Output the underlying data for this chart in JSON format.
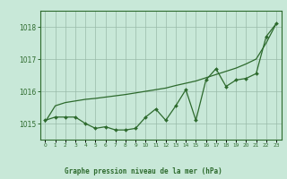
{
  "x": [
    0,
    1,
    2,
    3,
    4,
    5,
    6,
    7,
    8,
    9,
    10,
    11,
    12,
    13,
    14,
    15,
    16,
    17,
    18,
    19,
    20,
    21,
    22,
    23
  ],
  "y_line": [
    1015.1,
    1015.2,
    1015.2,
    1015.2,
    1015.0,
    1014.85,
    1014.9,
    1014.8,
    1014.8,
    1014.85,
    1015.2,
    1015.45,
    1015.1,
    1015.55,
    1016.05,
    1015.1,
    1016.35,
    1016.7,
    1016.15,
    1016.35,
    1016.4,
    1016.55,
    1017.7,
    1018.1
  ],
  "y_trend": [
    1015.05,
    1015.55,
    1015.65,
    1015.7,
    1015.75,
    1015.78,
    1015.82,
    1015.86,
    1015.9,
    1015.95,
    1016.0,
    1016.05,
    1016.1,
    1016.18,
    1016.25,
    1016.32,
    1016.42,
    1016.52,
    1016.62,
    1016.72,
    1016.85,
    1017.0,
    1017.5,
    1018.1
  ],
  "line_color": "#2d6a2d",
  "trend_color": "#2d6a2d",
  "bg_color": "#c8e8d8",
  "grid_color": "#99bbaa",
  "plot_bg": "#c8e8d8",
  "title": "Graphe pression niveau de la mer (hPa)",
  "ylim_min": 1014.5,
  "ylim_max": 1018.5,
  "yticks": [
    1015,
    1016,
    1017,
    1018
  ],
  "xlim_min": -0.5,
  "xlim_max": 23.5
}
